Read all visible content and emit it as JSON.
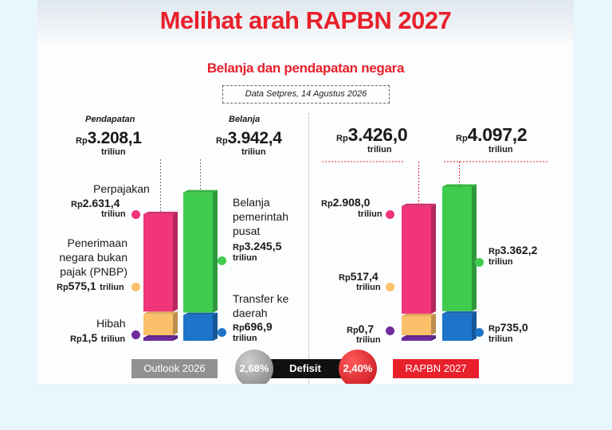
{
  "header": {
    "title": "Melihat arah RAPBN 2027",
    "subtitle": "Belanja dan pendapatan negara",
    "source": "Data Setpres, 14 Agustus 2026"
  },
  "labels": {
    "pendapatan": "Pendapatan",
    "belanja": "Belanja",
    "rp": "Rp",
    "triliun": "triliun",
    "perpajakan": "Perpajakan",
    "pnbp": "Penerimaan negara bukan pajak (PNBP)",
    "hibah": "Hibah",
    "belanja_pusat": "Belanja pemerintah pusat",
    "transfer": "Transfer ke daerah",
    "defisit": "Defisit"
  },
  "outlook": {
    "name": "Outlook 2026",
    "pendapatan_total": "3.208,1",
    "belanja_total": "3.942,4",
    "perpajakan": "2.631,4",
    "pnbp": "575,1",
    "hibah": "1,5",
    "belanja_pusat": "3.245,5",
    "transfer": "696,9",
    "defisit": "2,68%"
  },
  "rapbn": {
    "name": "RAPBN 2027",
    "pendapatan_total": "3.426,0",
    "belanja_total": "4.097,2",
    "perpajakan": "2.908,0",
    "pnbp": "517,4",
    "hibah": "0,7",
    "belanja_pusat": "3.362,2",
    "transfer": "735,0",
    "defisit": "2,40%"
  },
  "colors": {
    "title_red": "#e8202b",
    "perpajakan": "#f0357a",
    "pnbp": "#fcc06a",
    "hibah": "#6f2b9e",
    "belanja_pusat": "#3fcb4e",
    "transfer": "#1d74c9",
    "outlook_badge": "#909090",
    "rapbn_badge": "#e8202b"
  },
  "chart_data": {
    "type": "bar",
    "title": "Belanja dan pendapatan negara",
    "categories": [
      "Outlook 2026",
      "RAPBN 2027"
    ],
    "unit": "Rp triliun",
    "stacks": [
      {
        "name": "Pendapatan",
        "series": [
          {
            "name": "Hibah",
            "values": [
              1.5,
              0.7
            ]
          },
          {
            "name": "Penerimaan negara bukan pajak (PNBP)",
            "values": [
              575.1,
              517.4
            ]
          },
          {
            "name": "Perpajakan",
            "values": [
              2631.4,
              2908.0
            ]
          }
        ],
        "totals": [
          3208.1,
          3426.0
        ]
      },
      {
        "name": "Belanja",
        "series": [
          {
            "name": "Transfer ke daerah",
            "values": [
              696.9,
              735.0
            ]
          },
          {
            "name": "Belanja pemerintah pusat",
            "values": [
              3245.5,
              3362.2
            ]
          }
        ],
        "totals": [
          3942.4,
          4097.2
        ]
      }
    ],
    "defisit": {
      "name": "Defisit",
      "values": [
        "2,68%",
        "2,40%"
      ]
    }
  }
}
